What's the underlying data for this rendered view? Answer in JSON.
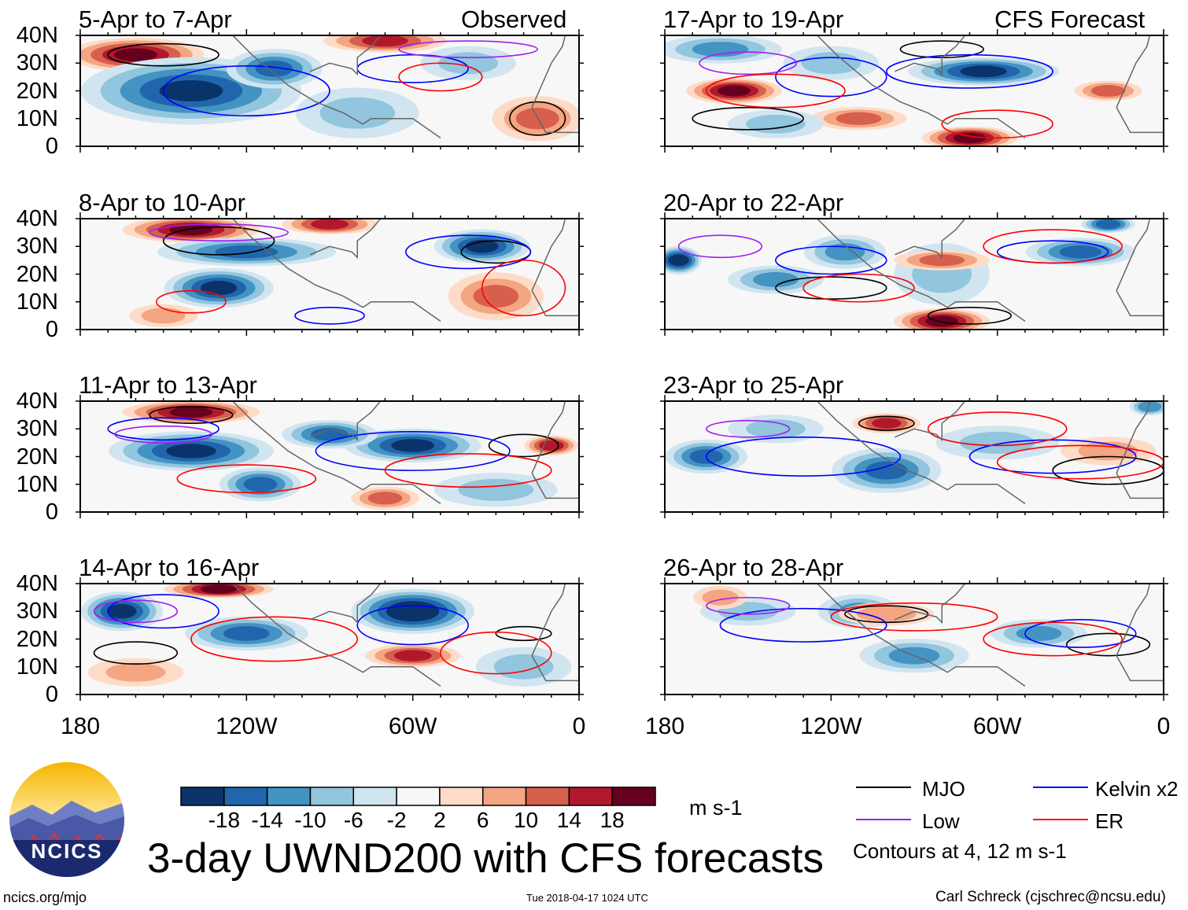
{
  "chart_data": {
    "type": "heatmap",
    "title": "3-day UWND200 with CFS forecasts",
    "units": "m s-1",
    "column_titles": [
      "Observed",
      "CFS Forecast"
    ],
    "lon_range": [
      -180,
      0
    ],
    "lat_range": [
      0,
      40
    ],
    "x_ticks": [
      "180",
      "120W",
      "60W",
      "0"
    ],
    "y_ticks": [
      "40N",
      "30N",
      "20N",
      "10N",
      "0"
    ],
    "colorbar": {
      "levels": [
        "-18",
        "-14",
        "-10",
        "-6",
        "-2",
        "2",
        "6",
        "10",
        "14",
        "18"
      ],
      "colors": [
        "#0a3469",
        "#2166ac",
        "#4393c3",
        "#92c5de",
        "#d1e5f0",
        "#f7f7f7",
        "#fddbc7",
        "#f4a582",
        "#d6604d",
        "#b2182b",
        "#67001f"
      ]
    },
    "legend": [
      {
        "label": "MJO",
        "color": "#000000"
      },
      {
        "label": "Kelvin x2",
        "color": "#0000ff"
      },
      {
        "label": "Low",
        "color": "#a020f0"
      },
      {
        "label": "ER",
        "color": "#ff0000"
      }
    ],
    "contour_note": "Contours at 4, 12 m s-1",
    "panels": [
      {
        "title": "5-Apr to 7-Apr",
        "fields": [
          [
            -160,
            33,
            20,
            45,
            10
          ],
          [
            -140,
            20,
            -20,
            75,
            22
          ],
          [
            -110,
            28,
            -14,
            30,
            12
          ],
          [
            -80,
            12,
            -6,
            40,
            16
          ],
          [
            -70,
            38,
            16,
            40,
            6
          ],
          [
            -15,
            10,
            12,
            28,
            14
          ],
          [
            -40,
            30,
            -6,
            30,
            10
          ]
        ],
        "contours": [
          [
            "MJO",
            -150,
            33,
            40,
            8
          ],
          [
            "MJO",
            -15,
            10,
            20,
            12
          ],
          [
            "Kelvin x2",
            -120,
            20,
            60,
            18
          ],
          [
            "Kelvin x2",
            -60,
            28,
            40,
            10
          ],
          [
            "Low",
            -40,
            35,
            50,
            6
          ],
          [
            "ER",
            -50,
            25,
            30,
            10
          ]
        ]
      },
      {
        "title": "8-Apr to 10-Apr",
        "fields": [
          [
            -140,
            36,
            18,
            45,
            7
          ],
          [
            -90,
            38,
            14,
            30,
            5
          ],
          [
            -130,
            15,
            -18,
            35,
            12
          ],
          [
            -120,
            28,
            -14,
            60,
            8
          ],
          [
            -35,
            30,
            -20,
            30,
            10
          ],
          [
            -30,
            12,
            10,
            30,
            15
          ],
          [
            -150,
            5,
            6,
            20,
            6
          ]
        ],
        "contours": [
          [
            "MJO",
            -130,
            32,
            40,
            10
          ],
          [
            "MJO",
            -30,
            28,
            25,
            8
          ],
          [
            "Kelvin x2",
            -40,
            28,
            45,
            12
          ],
          [
            "Kelvin x2",
            -90,
            5,
            25,
            6
          ],
          [
            "Low",
            -130,
            35,
            50,
            6
          ],
          [
            "ER",
            -140,
            10,
            25,
            8
          ],
          [
            "ER",
            -20,
            15,
            30,
            20
          ]
        ]
      },
      {
        "title": "11-Apr to 13-Apr",
        "fields": [
          [
            -140,
            36,
            18,
            45,
            6
          ],
          [
            -140,
            22,
            -20,
            55,
            12
          ],
          [
            -60,
            24,
            -20,
            45,
            10
          ],
          [
            -115,
            10,
            -14,
            25,
            10
          ],
          [
            -90,
            28,
            -16,
            30,
            8
          ],
          [
            -10,
            24,
            16,
            15,
            5
          ],
          [
            -30,
            8,
            -6,
            40,
            10
          ],
          [
            -70,
            5,
            10,
            20,
            6
          ]
        ],
        "contours": [
          [
            "MJO",
            -140,
            35,
            30,
            6
          ],
          [
            "MJO",
            -20,
            24,
            25,
            8
          ],
          [
            "Kelvin x2",
            -60,
            22,
            70,
            14
          ],
          [
            "Kelvin x2",
            -150,
            30,
            40,
            8
          ],
          [
            "Low",
            -150,
            28,
            35,
            6
          ],
          [
            "ER",
            -120,
            12,
            50,
            10
          ],
          [
            "ER",
            -40,
            15,
            60,
            12
          ]
        ]
      },
      {
        "title": "14-Apr to 16-Apr",
        "fields": [
          [
            -165,
            30,
            -18,
            25,
            12
          ],
          [
            -120,
            22,
            -16,
            40,
            10
          ],
          [
            -60,
            30,
            -22,
            40,
            14
          ],
          [
            -130,
            38,
            18,
            35,
            4
          ],
          [
            -60,
            14,
            14,
            30,
            6
          ],
          [
            -160,
            8,
            8,
            30,
            8
          ],
          [
            -20,
            10,
            -8,
            30,
            12
          ]
        ],
        "contours": [
          [
            "MJO",
            -160,
            15,
            30,
            8
          ],
          [
            "MJO",
            -20,
            22,
            20,
            5
          ],
          [
            "Kelvin x2",
            -60,
            25,
            40,
            14
          ],
          [
            "Kelvin x2",
            -150,
            30,
            40,
            12
          ],
          [
            "Low",
            -160,
            30,
            30,
            8
          ],
          [
            "ER",
            -110,
            20,
            60,
            16
          ],
          [
            "ER",
            -30,
            15,
            40,
            15
          ]
        ]
      },
      {
        "title": "17-Apr to 19-Apr",
        "fields": [
          [
            -160,
            35,
            -10,
            40,
            8
          ],
          [
            -155,
            20,
            18,
            30,
            7
          ],
          [
            -65,
            27,
            -20,
            50,
            8
          ],
          [
            -70,
            3,
            18,
            30,
            6
          ],
          [
            -110,
            10,
            12,
            30,
            6
          ],
          [
            -20,
            20,
            10,
            20,
            5
          ],
          [
            -120,
            30,
            -6,
            30,
            10
          ],
          [
            -140,
            8,
            -6,
            30,
            8
          ]
        ],
        "contours": [
          [
            "MJO",
            -150,
            10,
            40,
            8
          ],
          [
            "MJO",
            -80,
            35,
            30,
            6
          ],
          [
            "Kelvin x2",
            -70,
            27,
            60,
            12
          ],
          [
            "Kelvin x2",
            -120,
            25,
            40,
            14
          ],
          [
            "Low",
            -150,
            30,
            35,
            8
          ],
          [
            "ER",
            -140,
            20,
            50,
            12
          ],
          [
            "ER",
            -60,
            8,
            40,
            10
          ]
        ]
      },
      {
        "title": "20-Apr to 22-Apr",
        "fields": [
          [
            -175,
            25,
            -18,
            12,
            8
          ],
          [
            -140,
            18,
            -10,
            30,
            8
          ],
          [
            -115,
            28,
            -12,
            25,
            10
          ],
          [
            -30,
            28,
            -16,
            35,
            8
          ],
          [
            -80,
            20,
            -8,
            30,
            20
          ],
          [
            -80,
            25,
            10,
            30,
            5
          ],
          [
            -80,
            3,
            18,
            30,
            7
          ],
          [
            -20,
            38,
            -16,
            15,
            4
          ]
        ],
        "contours": [
          [
            "MJO",
            -120,
            15,
            40,
            8
          ],
          [
            "MJO",
            -70,
            5,
            30,
            6
          ],
          [
            "Kelvin x2",
            -40,
            28,
            40,
            8
          ],
          [
            "Kelvin x2",
            -120,
            25,
            40,
            10
          ],
          [
            "Low",
            -160,
            30,
            30,
            8
          ],
          [
            "ER",
            -110,
            15,
            40,
            10
          ],
          [
            "ER",
            -40,
            30,
            50,
            12
          ]
        ]
      },
      {
        "title": "23-Apr to 25-Apr",
        "fields": [
          [
            -165,
            20,
            -14,
            25,
            10
          ],
          [
            -100,
            15,
            -16,
            35,
            14
          ],
          [
            -60,
            25,
            -6,
            40,
            10
          ],
          [
            -100,
            32,
            14,
            20,
            5
          ],
          [
            -20,
            22,
            8,
            30,
            8
          ],
          [
            -140,
            30,
            -6,
            30,
            8
          ],
          [
            -5,
            38,
            -10,
            10,
            4
          ]
        ],
        "contours": [
          [
            "MJO",
            -100,
            32,
            20,
            5
          ],
          [
            "MJO",
            -20,
            15,
            40,
            10
          ],
          [
            "Kelvin x2",
            -130,
            20,
            70,
            14
          ],
          [
            "Kelvin x2",
            -40,
            20,
            60,
            12
          ],
          [
            "Low",
            -150,
            30,
            30,
            6
          ],
          [
            "ER",
            -60,
            30,
            50,
            12
          ],
          [
            "ER",
            -30,
            18,
            60,
            12
          ]
        ]
      },
      {
        "title": "26-Apr to 28-Apr",
        "fields": [
          [
            -110,
            30,
            -10,
            25,
            10
          ],
          [
            -90,
            14,
            -12,
            35,
            10
          ],
          [
            -45,
            22,
            -10,
            30,
            8
          ],
          [
            -150,
            30,
            -6,
            30,
            8
          ],
          [
            -100,
            29,
            8,
            30,
            6
          ],
          [
            -160,
            35,
            6,
            15,
            6
          ]
        ],
        "contours": [
          [
            "MJO",
            -100,
            29,
            30,
            6
          ],
          [
            "MJO",
            -20,
            18,
            30,
            8
          ],
          [
            "Kelvin x2",
            -130,
            25,
            60,
            12
          ],
          [
            "Kelvin x2",
            -30,
            22,
            40,
            10
          ],
          [
            "Low",
            -150,
            32,
            30,
            6
          ],
          [
            "ER",
            -90,
            28,
            60,
            10
          ],
          [
            "ER",
            -40,
            20,
            50,
            12
          ]
        ]
      }
    ]
  },
  "logo": {
    "text": "NCICS"
  },
  "footer": {
    "site": "ncics.org/mjo",
    "timestamp": "Tue 2018-04-17 1024 UTC",
    "author": "Carl Schreck (cjschrec@ncsu.edu)"
  }
}
